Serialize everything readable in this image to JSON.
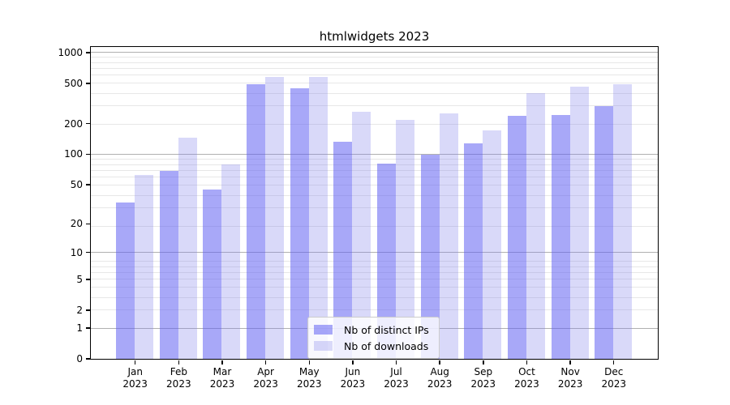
{
  "chart_data": {
    "type": "bar",
    "title": "htmlwidgets 2023",
    "categories": [
      "Jan",
      "Feb",
      "Mar",
      "Apr",
      "May",
      "Jun",
      "Jul",
      "Aug",
      "Sep",
      "Oct",
      "Nov",
      "Dec"
    ],
    "year_label": "2023",
    "series": [
      {
        "name": "Nb of distinct IPs",
        "color": "#6161f2",
        "opacity": 0.55,
        "values": [
          33,
          68,
          44,
          483,
          441,
          131,
          80,
          99,
          127,
          238,
          241,
          295
        ]
      },
      {
        "name": "Nb of downloads",
        "color": "#8080eb",
        "opacity": 0.3,
        "values": [
          62,
          144,
          79,
          573,
          567,
          259,
          217,
          250,
          170,
          398,
          456,
          486
        ]
      }
    ],
    "y_axis": {
      "scale": "log1p",
      "tick_labels": [
        0,
        1,
        2,
        5,
        10,
        20,
        50,
        100,
        200,
        500,
        1000
      ],
      "major_grid_values": [
        1,
        10,
        100,
        1000
      ],
      "ylim": [
        0,
        1135
      ]
    },
    "legend": {
      "position": "lower-center",
      "entries": [
        "Nb of distinct IPs",
        "Nb of downloads"
      ]
    },
    "grid": true,
    "colors": {
      "bar_dark_rendered": "#a8a8f8",
      "bar_light_rendered": "#d8d8f8",
      "major_grid": "#b0b0b0",
      "minor_grid": "#e7e7e7",
      "axis": "#000000"
    }
  }
}
